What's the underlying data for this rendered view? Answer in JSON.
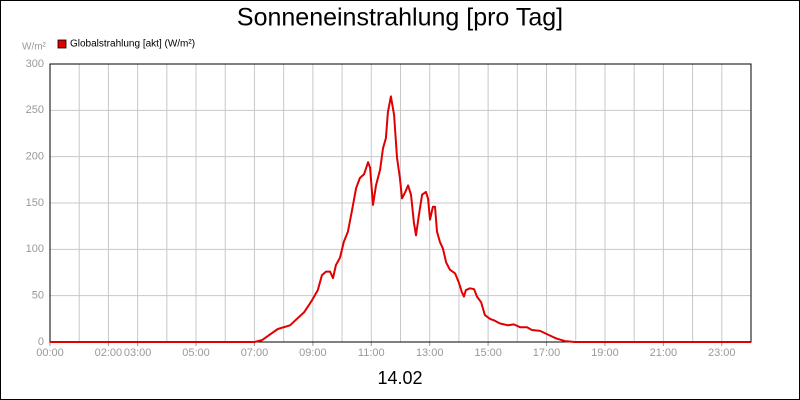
{
  "chart_data": {
    "type": "line",
    "title": "Sonneneinstrahlung [pro Tag]",
    "y_unit": "W/m²",
    "x_label": "14.02",
    "xlim": [
      0,
      24
    ],
    "ylim": [
      0,
      300
    ],
    "yticks": [
      0,
      50,
      100,
      150,
      200,
      250,
      300
    ],
    "xticks": [
      {
        "value": 0,
        "label": "00:00"
      },
      {
        "value": 2,
        "label": "02:00"
      },
      {
        "value": 3,
        "label": "03:00"
      },
      {
        "value": 5,
        "label": "05:00"
      },
      {
        "value": 7,
        "label": "07:00"
      },
      {
        "value": 9,
        "label": "09:00"
      },
      {
        "value": 11,
        "label": "11:00"
      },
      {
        "value": 13,
        "label": "13:00"
      },
      {
        "value": 15,
        "label": "15:00"
      },
      {
        "value": 17,
        "label": "17:00"
      },
      {
        "value": 19,
        "label": "19:00"
      },
      {
        "value": 21,
        "label": "21:00"
      },
      {
        "value": 23,
        "label": "23:00"
      }
    ],
    "xgrid": [
      1,
      2,
      3,
      4,
      5,
      6,
      7,
      8,
      9,
      10,
      11,
      12,
      13,
      14,
      15,
      16,
      17,
      18,
      19,
      20,
      21,
      22,
      23
    ],
    "grid": true,
    "series": [
      {
        "name": "Globalstrahlung [akt] (W/m²)",
        "color": "#e00000",
        "x": [
          0,
          7.0,
          7.26,
          7.53,
          7.8,
          8.22,
          8.42,
          8.7,
          8.97,
          9.17,
          9.31,
          9.45,
          9.59,
          9.69,
          9.79,
          9.93,
          10.06,
          10.2,
          10.34,
          10.48,
          10.61,
          10.75,
          10.89,
          10.96,
          11.06,
          11.16,
          11.3,
          11.4,
          11.5,
          11.57,
          11.67,
          11.78,
          11.88,
          11.98,
          12.05,
          12.15,
          12.26,
          12.36,
          12.46,
          12.53,
          12.63,
          12.74,
          12.87,
          12.94,
          13.01,
          13.11,
          13.18,
          13.25,
          13.35,
          13.45,
          13.56,
          13.69,
          13.87,
          14.0,
          14.1,
          14.17,
          14.24,
          14.38,
          14.52,
          14.62,
          14.76,
          14.89,
          15.06,
          15.23,
          15.41,
          15.68,
          15.88,
          16.09,
          16.33,
          16.5,
          16.78,
          17.05,
          17.32,
          17.63,
          17.97,
          24
        ],
        "values": [
          0,
          0,
          2,
          8,
          14,
          18,
          24,
          32,
          45,
          56,
          72,
          76,
          76,
          69,
          83,
          91,
          108,
          119,
          142,
          166,
          177,
          181,
          194,
          188,
          148,
          169,
          186,
          209,
          220,
          248,
          265,
          245,
          199,
          177,
          155,
          161,
          169,
          159,
          129,
          115,
          137,
          159,
          162,
          155,
          132,
          146,
          146,
          119,
          108,
          101,
          86,
          78,
          74,
          64,
          54,
          49,
          56,
          58,
          57,
          49,
          43,
          29,
          25,
          23,
          20,
          18,
          19,
          16,
          16,
          13,
          12,
          8,
          4,
          1,
          0,
          0
        ]
      }
    ]
  }
}
